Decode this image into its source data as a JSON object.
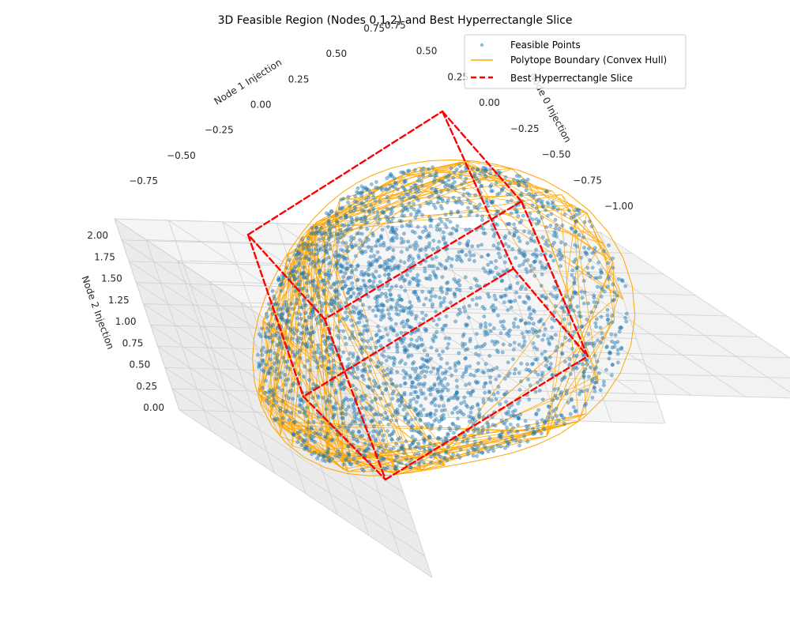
{
  "chart_data": {
    "type": "scatter",
    "title": "3D Feasible Region (Nodes 0,1,2) and Best Hyperrectangle Slice",
    "axes": {
      "x": {
        "label": "Node 0 Injection",
        "ticks": [
          "0.75",
          "0.50",
          "0.25",
          "0.00",
          "−0.25",
          "−0.50",
          "−0.75",
          "−1.00"
        ],
        "range": [
          -1.1,
          0.85
        ]
      },
      "y": {
        "label": "Node 1 Injection",
        "ticks": [
          "0.75",
          "0.50",
          "0.25",
          "0.00",
          "−0.25",
          "−0.50",
          "−0.75"
        ],
        "range": [
          -0.85,
          0.85
        ]
      },
      "z": {
        "label": "Node 2 Injection",
        "ticks": [
          "2.00",
          "1.75",
          "1.50",
          "1.25",
          "1.00",
          "0.75",
          "0.50",
          "0.25",
          "0.00"
        ],
        "range": [
          0.0,
          2.0
        ]
      }
    },
    "grid": true,
    "legend_position": "top-right",
    "series": [
      {
        "name": "Feasible Points",
        "kind": "scatter",
        "color": "#1f77b4"
      },
      {
        "name": "Polytope Boundary (Convex Hull)",
        "kind": "line",
        "color": "#ffa500"
      },
      {
        "name": "Best Hyperrectangle Slice",
        "kind": "dashed-line",
        "color": "#ff0000"
      }
    ],
    "feasible_points_count": 3000,
    "hyperrectangle_slice": {
      "node0": [
        -0.6,
        0.6
      ],
      "node1": [
        -0.6,
        0.6
      ],
      "node2": [
        0.3,
        1.7
      ]
    }
  }
}
